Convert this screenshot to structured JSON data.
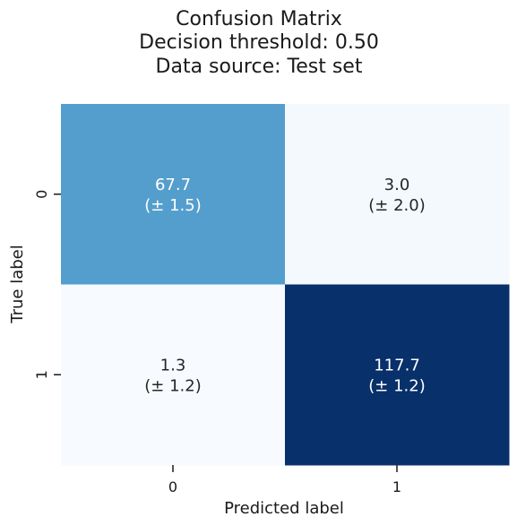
{
  "chart_data": {
    "type": "heatmap",
    "title_lines": [
      "Confusion Matrix",
      "Decision threshold: 0.50",
      "Data source: Test set"
    ],
    "xlabel": "Predicted label",
    "ylabel": "True label",
    "x_categories": [
      "0",
      "1"
    ],
    "y_categories": [
      "0",
      "1"
    ],
    "values": [
      [
        67.7,
        3.0
      ],
      [
        1.3,
        117.7
      ]
    ],
    "annotations": [
      [
        {
          "value": "67.7",
          "std": "(± 1.5)"
        },
        {
          "value": "3.0",
          "std": "(± 2.0)"
        }
      ],
      [
        {
          "value": "1.3",
          "std": "(± 1.2)"
        },
        {
          "value": "117.7",
          "std": "(± 1.2)"
        }
      ]
    ],
    "colormap": "Blues",
    "colorbar": false
  }
}
